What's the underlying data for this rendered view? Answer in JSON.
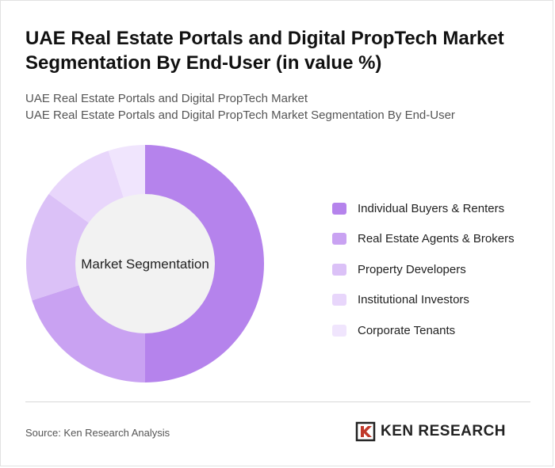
{
  "header": {
    "title": "UAE Real Estate Portals and Digital PropTech Market Segmentation By End-User (in value %)",
    "subtitle_line1": "UAE Real Estate Portals and Digital PropTech Market",
    "subtitle_line2": "UAE Real Estate Portals and Digital PropTech Market Segmentation By End-User"
  },
  "chart_data": {
    "type": "pie",
    "variant": "donut",
    "center_label": "Market Segmentation",
    "legend_position": "right",
    "categories": [
      "Individual Buyers & Renters",
      "Real Estate Agents & Brokers",
      "Property Developers",
      "Institutional Investors",
      "Corporate Tenants"
    ],
    "values": [
      50,
      20,
      15,
      10,
      5
    ],
    "colors": [
      "#b583ec",
      "#c9a2f2",
      "#dbc1f7",
      "#e8d6fb",
      "#f0e5fd"
    ]
  },
  "footer": {
    "source": "Source: Ken Research Analysis",
    "brand": "KEN RESEARCH",
    "brand_icon": "ken-research-logo-icon"
  }
}
